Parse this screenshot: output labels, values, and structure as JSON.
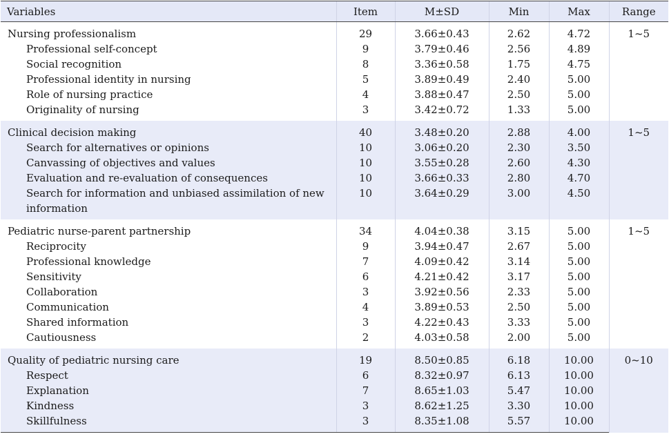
{
  "headers": {
    "variables": "Variables",
    "item": "Item",
    "msd": "M±SD",
    "min": "Min",
    "max": "Max",
    "range": "Range"
  },
  "groups": [
    {
      "name": "Nursing professionalism",
      "item": "29",
      "msd": "3.66±0.43",
      "min": "2.62",
      "max": "4.72",
      "range": "1~5",
      "subs": [
        {
          "name": "Professional self-concept",
          "item": "9",
          "msd": "3.79±0.46",
          "min": "2.56",
          "max": "4.89"
        },
        {
          "name": "Social recognition",
          "item": "8",
          "msd": "3.36±0.58",
          "min": "1.75",
          "max": "4.75"
        },
        {
          "name": "Professional identity in nursing",
          "item": "5",
          "msd": "3.89±0.49",
          "min": "2.40",
          "max": "5.00"
        },
        {
          "name": "Role of nursing practice",
          "item": "4",
          "msd": "3.88±0.47",
          "min": "2.50",
          "max": "5.00"
        },
        {
          "name": "Originality of nursing",
          "item": "3",
          "msd": "3.42±0.72",
          "min": "1.33",
          "max": "5.00"
        }
      ]
    },
    {
      "name": "Clinical decision making",
      "item": "40",
      "msd": "3.48±0.20",
      "min": "2.88",
      "max": "4.00",
      "range": "1~5",
      "subs": [
        {
          "name": "Search for alternatives or opinions",
          "item": "10",
          "msd": "3.06±0.20",
          "min": "2.30",
          "max": "3.50"
        },
        {
          "name": "Canvassing of objectives and values",
          "item": "10",
          "msd": "3.55±0.28",
          "min": "2.60",
          "max": "4.30"
        },
        {
          "name": "Evaluation and re-evaluation of consequences",
          "item": "10",
          "msd": "3.66±0.33",
          "min": "2.80",
          "max": "4.70"
        },
        {
          "name": "Search for information and unbiased assimilation of new information",
          "item": "10",
          "msd": "3.64±0.29",
          "min": "3.00",
          "max": "4.50"
        }
      ]
    },
    {
      "name": "Pediatric nurse-parent partnership",
      "item": "34",
      "msd": "4.04±0.38",
      "min": "3.15",
      "max": "5.00",
      "range": "1~5",
      "subs": [
        {
          "name": "Reciprocity",
          "item": "9",
          "msd": "3.94±0.47",
          "min": "2.67",
          "max": "5.00"
        },
        {
          "name": "Professional knowledge",
          "item": "7",
          "msd": "4.09±0.42",
          "min": "3.14",
          "max": "5.00"
        },
        {
          "name": "Sensitivity",
          "item": "6",
          "msd": "4.21±0.42",
          "min": "3.17",
          "max": "5.00"
        },
        {
          "name": "Collaboration",
          "item": "3",
          "msd": "3.92±0.56",
          "min": "2.33",
          "max": "5.00"
        },
        {
          "name": "Communication",
          "item": "4",
          "msd": "3.89±0.53",
          "min": "2.50",
          "max": "5.00"
        },
        {
          "name": "Shared information",
          "item": "3",
          "msd": "4.22±0.43",
          "min": "3.33",
          "max": "5.00"
        },
        {
          "name": "Cautiousness",
          "item": "2",
          "msd": "4.03±0.58",
          "min": "2.00",
          "max": "5.00"
        }
      ]
    },
    {
      "name": "Quality of pediatric nursing care",
      "item": "19",
      "msd": "8.50±0.85",
      "min": "6.18",
      "max": "10.00",
      "range": "0~10",
      "subs": [
        {
          "name": "Respect",
          "item": "6",
          "msd": "8.32±0.97",
          "min": "6.13",
          "max": "10.00"
        },
        {
          "name": "Explanation",
          "item": "7",
          "msd": "8.65±1.03",
          "min": "5.47",
          "max": "10.00"
        },
        {
          "name": "Kindness",
          "item": "3",
          "msd": "8.62±1.25",
          "min": "3.30",
          "max": "10.00"
        },
        {
          "name": "Skillfulness",
          "item": "3",
          "msd": "8.35±1.08",
          "min": "5.57",
          "max": "10.00"
        }
      ]
    }
  ]
}
